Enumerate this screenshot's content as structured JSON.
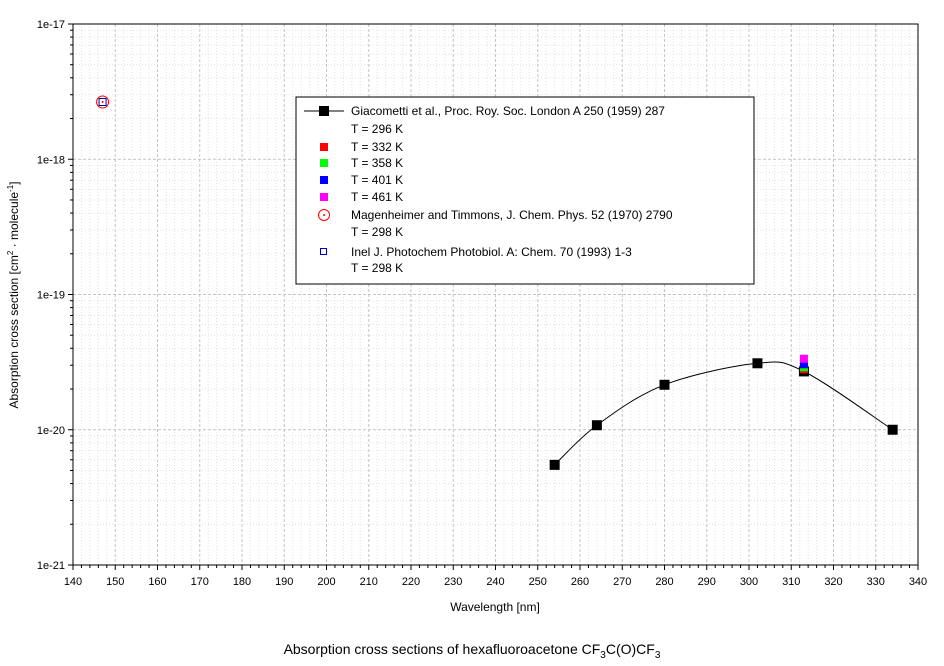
{
  "chart_data": {
    "type": "scatter",
    "caption": {
      "text": "Absorption cross sections of hexafluoroacetone CF",
      "sub1": "3",
      "mid": "C(O)CF",
      "sub2": "3"
    },
    "xlabel": "Wavelength [nm]",
    "ylabel": {
      "prefix": "Absorption cross section [cm",
      "sup1": "2",
      "middle": " · molecule",
      "sup2": "-1",
      "suffix": "]"
    },
    "xlim": [
      140,
      340
    ],
    "ylim": [
      1e-21,
      1e-17
    ],
    "yscale": "log",
    "grid": true,
    "legend_position": "top-center",
    "x_ticks": [
      "140",
      "150",
      "160",
      "170",
      "180",
      "190",
      "200",
      "210",
      "220",
      "230",
      "240",
      "250",
      "260",
      "270",
      "280",
      "290",
      "300",
      "310",
      "320",
      "330",
      "340"
    ],
    "y_ticks": [
      "1e-21",
      "1e-20",
      "1e-19",
      "1e-18",
      "1e-17"
    ],
    "series": [
      {
        "name": "Giacometti et al., Proc. Roy. Soc. London A 250 (1959) 287",
        "name2": "T = 296 K",
        "marker": "filled-square-line",
        "color": "#000000",
        "x": [
          254,
          264,
          280,
          302,
          313,
          334
        ],
        "y": [
          5.5e-21,
          1.08e-20,
          2.15e-20,
          3.1e-20,
          2.7e-20,
          1e-20
        ]
      },
      {
        "name": "T = 332 K",
        "marker": "filled-square",
        "color": "#ff0000",
        "x": [
          313
        ],
        "y": [
          2.8e-20
        ]
      },
      {
        "name": "T = 358 K",
        "marker": "filled-square",
        "color": "#00ff00",
        "x": [
          313
        ],
        "y": [
          2.9e-20
        ]
      },
      {
        "name": "T = 401 K",
        "marker": "filled-square",
        "color": "#0000ff",
        "x": [
          313
        ],
        "y": [
          3.05e-20
        ]
      },
      {
        "name": "T = 461 K",
        "marker": "filled-square",
        "color": "#ff00ff",
        "x": [
          313
        ],
        "y": [
          3.35e-20
        ]
      },
      {
        "name": "Magenheimer and Timmons, J. Chem. Phys. 52 (1970) 2790",
        "name2": "T = 298 K",
        "marker": "dotted-circle",
        "color": "#ff0000",
        "x": [
          147
        ],
        "y": [
          2.65e-18
        ]
      },
      {
        "name": "Inel J. Photochem Photobiol. A: Chem. 70 (1993) 1-3",
        "name2": "T = 298 K",
        "marker": "open-square",
        "color": "#0000aa",
        "x": [
          147
        ],
        "y": [
          2.65e-18
        ]
      }
    ]
  }
}
